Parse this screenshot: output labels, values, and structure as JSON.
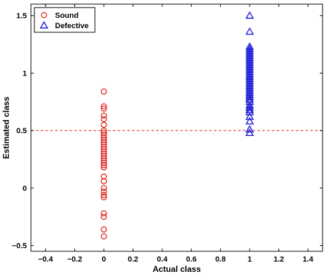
{
  "chart_data": {
    "type": "scatter",
    "title": "",
    "xlabel": "Actual class",
    "ylabel": "Estimated class",
    "xlim": [
      -0.5,
      1.5
    ],
    "ylim": [
      -0.55,
      1.6
    ],
    "xticks": [
      -0.4,
      -0.2,
      0,
      0.2,
      0.4,
      0.6,
      0.8,
      1,
      1.2,
      1.4
    ],
    "xtick_labels": [
      "−0.4",
      "−0.2",
      "0",
      "0.2",
      "0.4",
      "0.6",
      "0.8",
      "1",
      "1.2",
      "1.4"
    ],
    "yticks": [
      -0.5,
      0,
      0.5,
      1,
      1.5
    ],
    "ytick_labels": [
      "−0.5",
      "0",
      "0.5",
      "1",
      "1.5"
    ],
    "grid": false,
    "legend_position": "top-left",
    "threshold": {
      "y": 0.5,
      "color": "#e0302a",
      "style": "dashed"
    },
    "series": [
      {
        "name": "Sound",
        "marker": "circle",
        "color": "#e0302a",
        "x": 0,
        "y": [
          0.84,
          0.71,
          0.69,
          0.63,
          0.6,
          0.55,
          0.5,
          0.48,
          0.46,
          0.44,
          0.42,
          0.4,
          0.38,
          0.36,
          0.34,
          0.32,
          0.3,
          0.28,
          0.26,
          0.24,
          0.22,
          0.2,
          0.18,
          0.1,
          0.06,
          0.0,
          -0.03,
          -0.06,
          -0.08,
          -0.22,
          -0.25,
          -0.36,
          -0.42
        ]
      },
      {
        "name": "Defective",
        "marker": "triangle",
        "color": "#1a1ad6",
        "x": 1,
        "y": [
          1.5,
          1.36,
          1.23,
          1.21,
          1.19,
          1.17,
          1.15,
          1.13,
          1.11,
          1.09,
          1.07,
          1.05,
          1.03,
          1.01,
          0.99,
          0.97,
          0.95,
          0.93,
          0.91,
          0.89,
          0.87,
          0.85,
          0.83,
          0.81,
          0.79,
          0.77,
          0.75,
          0.72,
          0.7,
          0.68,
          0.66,
          0.62,
          0.58,
          0.51,
          0.48
        ]
      }
    ]
  }
}
